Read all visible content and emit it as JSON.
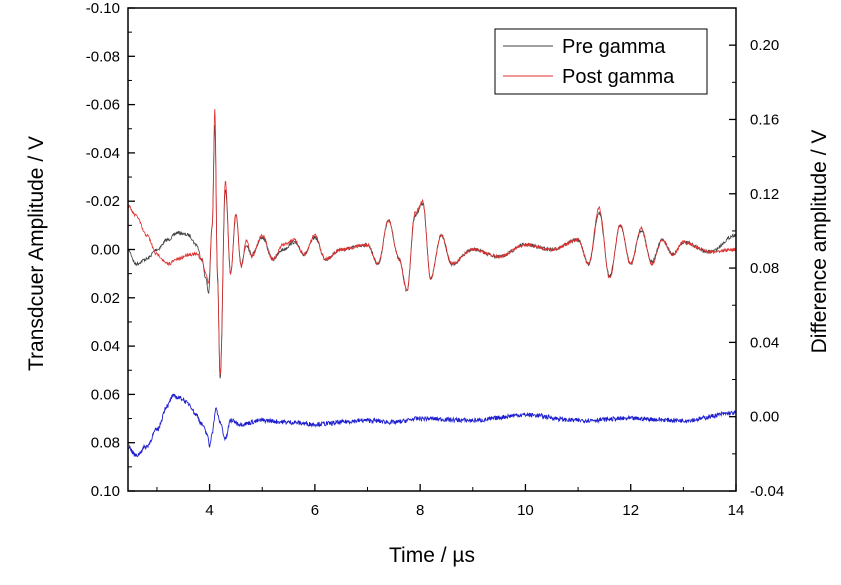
{
  "chart_data": {
    "type": "line",
    "title": "",
    "xlabel": "Time / µs",
    "ylabel_left": "Transdcuer Amplitude / V",
    "ylabel_right": "Difference amplitude / V",
    "xlim": [
      2.45,
      14
    ],
    "ylim_left": [
      0.1,
      -0.1
    ],
    "ylim_right": [
      -0.04,
      0.22
    ],
    "left_axis_inverted": true,
    "x_ticks": [
      4,
      6,
      8,
      10,
      12,
      14
    ],
    "x_tick_labels": [
      "4",
      "6",
      "8",
      "10",
      "12",
      "14"
    ],
    "y_left_ticks": [
      -0.1,
      -0.08,
      -0.06,
      -0.04,
      -0.02,
      0.0,
      0.02,
      0.04,
      0.06,
      0.08,
      0.1
    ],
    "y_left_tick_labels": [
      "-0.10",
      "-0.08",
      "-0.06",
      "-0.04",
      "-0.02",
      "0.00",
      "0.02",
      "0.04",
      "0.06",
      "0.08",
      "0.10"
    ],
    "y_right_ticks": [
      -0.04,
      0.0,
      0.04,
      0.08,
      0.12,
      0.16,
      0.2
    ],
    "y_right_tick_labels": [
      "-0.04",
      "0.00",
      "0.04",
      "0.08",
      "0.12",
      "0.16",
      "0.20"
    ],
    "grid": false,
    "legend_position": "top-right",
    "series": [
      {
        "name": "Pre gamma",
        "axis": "left",
        "color": "#404040",
        "x": [
          2.45,
          2.6,
          2.8,
          3.0,
          3.2,
          3.4,
          3.6,
          3.75,
          3.85,
          3.93,
          3.98,
          4.05,
          4.1,
          4.15,
          4.2,
          4.3,
          4.4,
          4.5,
          4.6,
          4.7,
          4.8,
          5.0,
          5.2,
          5.4,
          5.6,
          5.8,
          6.0,
          6.2,
          6.5,
          7.0,
          7.2,
          7.4,
          7.6,
          7.75,
          7.9,
          8.05,
          8.2,
          8.4,
          8.6,
          9.0,
          9.5,
          10.0,
          10.5,
          11.0,
          11.2,
          11.4,
          11.6,
          11.8,
          12.0,
          12.2,
          12.4,
          12.6,
          12.8,
          13.0,
          13.5,
          14.0
        ],
        "y": [
          0.0,
          0.006,
          0.004,
          0.0,
          -0.004,
          -0.007,
          -0.006,
          -0.002,
          0.004,
          0.012,
          0.018,
          -0.01,
          -0.052,
          0.01,
          0.054,
          -0.025,
          0.01,
          -0.014,
          0.006,
          -0.002,
          0.002,
          -0.005,
          0.004,
          0.0,
          -0.003,
          0.002,
          -0.005,
          0.004,
          0.0,
          -0.002,
          0.006,
          -0.012,
          0.004,
          0.017,
          -0.014,
          -0.019,
          0.012,
          -0.006,
          0.006,
          0.0,
          0.003,
          -0.002,
          0.0,
          -0.004,
          0.006,
          -0.015,
          0.011,
          -0.01,
          0.006,
          -0.008,
          0.005,
          -0.004,
          0.002,
          -0.003,
          0.001,
          -0.006
        ]
      },
      {
        "name": "Post gamma",
        "axis": "left",
        "color": "#e03030",
        "x": [
          2.45,
          2.6,
          2.8,
          3.0,
          3.2,
          3.4,
          3.6,
          3.75,
          3.85,
          3.93,
          3.98,
          4.05,
          4.1,
          4.15,
          4.2,
          4.3,
          4.4,
          4.5,
          4.6,
          4.7,
          4.8,
          5.0,
          5.2,
          5.4,
          5.6,
          5.8,
          6.0,
          6.2,
          6.5,
          7.0,
          7.2,
          7.4,
          7.6,
          7.75,
          7.9,
          8.05,
          8.2,
          8.4,
          8.6,
          9.0,
          9.5,
          10.0,
          10.5,
          11.0,
          11.2,
          11.4,
          11.6,
          11.8,
          12.0,
          12.2,
          12.4,
          12.6,
          12.8,
          13.0,
          13.5,
          14.0
        ],
        "y": [
          -0.018,
          -0.014,
          -0.006,
          0.002,
          0.006,
          0.004,
          0.002,
          0.002,
          0.004,
          0.01,
          0.014,
          -0.01,
          -0.058,
          0.012,
          0.052,
          -0.028,
          0.01,
          -0.015,
          0.007,
          -0.004,
          0.003,
          -0.006,
          0.004,
          -0.002,
          -0.004,
          0.002,
          -0.006,
          0.004,
          0.0,
          -0.002,
          0.006,
          -0.012,
          0.004,
          0.017,
          -0.015,
          -0.02,
          0.012,
          -0.006,
          0.006,
          0.0,
          0.003,
          -0.002,
          0.0,
          -0.004,
          0.006,
          -0.017,
          0.012,
          -0.01,
          0.006,
          -0.009,
          0.006,
          -0.004,
          0.002,
          -0.003,
          0.001,
          0.0
        ]
      },
      {
        "name": "",
        "axis": "right",
        "color": "#1f1fd0",
        "x": [
          2.45,
          2.6,
          2.8,
          3.0,
          3.2,
          3.3,
          3.45,
          3.6,
          3.75,
          3.85,
          3.95,
          4.0,
          4.05,
          4.12,
          4.2,
          4.3,
          4.4,
          4.6,
          5.0,
          5.5,
          6.0,
          7.0,
          7.5,
          8.0,
          9.0,
          10.0,
          11.0,
          12.0,
          13.0,
          14.0
        ],
        "y": [
          -0.016,
          -0.021,
          -0.016,
          -0.007,
          0.006,
          0.011,
          0.01,
          0.007,
          0.001,
          -0.004,
          -0.009,
          -0.016,
          -0.008,
          0.004,
          -0.003,
          -0.012,
          -0.002,
          -0.004,
          -0.002,
          -0.003,
          -0.004,
          -0.002,
          -0.003,
          -0.001,
          -0.002,
          0.001,
          -0.002,
          -0.001,
          -0.002,
          0.002
        ]
      }
    ]
  }
}
